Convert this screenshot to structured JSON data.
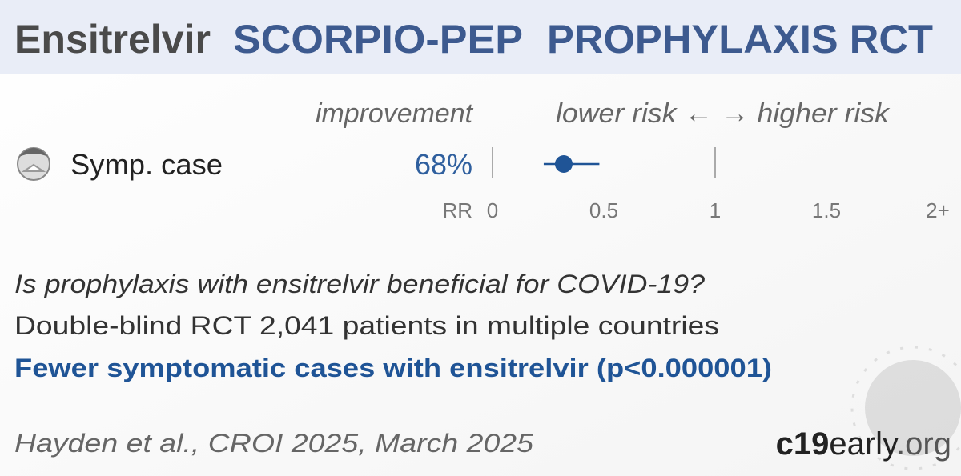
{
  "chart_data": {
    "type": "forest",
    "title_parts": [
      "Ensitrelvir",
      "SCORPIO-PEP",
      "PROPHYLAXIS RCT"
    ],
    "improvement_heading": "improvement",
    "direction_heading": "lower risk ← → higher risk",
    "outcome": "Symp. case",
    "improvement": "68%",
    "x_label": "RR",
    "values": [
      0.32
    ],
    "ci": [
      [
        0.23,
        0.48
      ]
    ],
    "color": "#1f5496",
    "xlim": [
      0,
      2
    ],
    "xticks": [
      0,
      0.5,
      1,
      1.5,
      {
        "value": 2,
        "label": "2+"
      }
    ],
    "question": "Is prophylaxis with ensitrelvir beneficial for COVID-19?",
    "description": "Double-blind RCT 2,041 patients in multiple countries",
    "conclusion": "Fewer symptomatic cases with ensitrelvir (p<0.000001)",
    "citation": "Hayden et al., CROI 2025, March 2025",
    "site_parts": [
      "c19",
      "early",
      ".org"
    ]
  }
}
